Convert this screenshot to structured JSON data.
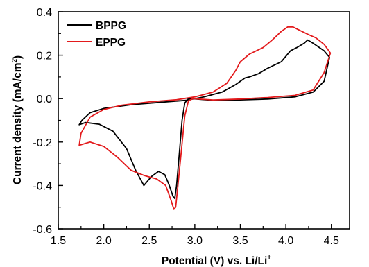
{
  "chart_data": {
    "type": "line",
    "title": "",
    "xlabel": "Potential (V) vs. Li/Li",
    "xlabel_superscript": "+",
    "ylabel_main": "Current density (mA/cm",
    "ylabel_superscript": "2",
    "ylabel_close": ")",
    "xlim": [
      1.5,
      4.7
    ],
    "ylim": [
      -0.6,
      0.4
    ],
    "xticks": [
      1.5,
      2.0,
      2.5,
      3.0,
      3.5,
      4.0,
      4.5
    ],
    "xtick_labels": [
      "1.5",
      "2.0",
      "2.5",
      "3.0",
      "3.5",
      "4.0",
      "4.5"
    ],
    "yticks": [
      -0.6,
      -0.4,
      -0.2,
      0.0,
      0.2,
      0.4
    ],
    "ytick_labels": [
      "-0.6",
      "-0.4",
      "-0.2",
      "0.0",
      "0.2",
      "0.4"
    ],
    "grid": false,
    "legend_position": "top-left",
    "series": [
      {
        "name": "BPPG",
        "color": "#000000",
        "points": [
          [
            2.96,
            0.0
          ],
          [
            3.2,
            -0.008
          ],
          [
            3.5,
            -0.006
          ],
          [
            3.8,
            -0.002
          ],
          [
            4.1,
            0.008
          ],
          [
            4.3,
            0.03
          ],
          [
            4.42,
            0.08
          ],
          [
            4.48,
            0.19
          ],
          [
            4.42,
            0.22
          ],
          [
            4.3,
            0.255
          ],
          [
            4.24,
            0.27
          ],
          [
            4.2,
            0.255
          ],
          [
            4.12,
            0.235
          ],
          [
            4.05,
            0.22
          ],
          [
            3.95,
            0.17
          ],
          [
            3.8,
            0.14
          ],
          [
            3.7,
            0.115
          ],
          [
            3.6,
            0.1
          ],
          [
            3.55,
            0.095
          ],
          [
            3.45,
            0.065
          ],
          [
            3.3,
            0.03
          ],
          [
            3.1,
            0.008
          ],
          [
            2.9,
            -0.008
          ],
          [
            2.6,
            -0.018
          ],
          [
            2.3,
            -0.028
          ],
          [
            2.0,
            -0.045
          ],
          [
            1.85,
            -0.065
          ],
          [
            1.76,
            -0.1
          ],
          [
            1.73,
            -0.12
          ],
          [
            1.8,
            -0.11
          ],
          [
            1.95,
            -0.118
          ],
          [
            2.1,
            -0.15
          ],
          [
            2.25,
            -0.23
          ],
          [
            2.35,
            -0.33
          ],
          [
            2.44,
            -0.4
          ],
          [
            2.52,
            -0.36
          ],
          [
            2.6,
            -0.335
          ],
          [
            2.67,
            -0.35
          ],
          [
            2.72,
            -0.4
          ],
          [
            2.76,
            -0.45
          ],
          [
            2.78,
            -0.46
          ],
          [
            2.8,
            -0.4
          ],
          [
            2.83,
            -0.25
          ],
          [
            2.86,
            -0.1
          ],
          [
            2.89,
            -0.02
          ],
          [
            2.93,
            0.0
          ],
          [
            2.96,
            0.0
          ]
        ]
      },
      {
        "name": "EPPG",
        "color": "#e31a1c",
        "points": [
          [
            2.98,
            0.0
          ],
          [
            3.2,
            -0.006
          ],
          [
            3.5,
            -0.002
          ],
          [
            3.8,
            0.005
          ],
          [
            4.1,
            0.015
          ],
          [
            4.3,
            0.04
          ],
          [
            4.42,
            0.12
          ],
          [
            4.49,
            0.21
          ],
          [
            4.42,
            0.25
          ],
          [
            4.33,
            0.28
          ],
          [
            4.25,
            0.295
          ],
          [
            4.15,
            0.315
          ],
          [
            4.08,
            0.33
          ],
          [
            4.02,
            0.33
          ],
          [
            3.95,
            0.31
          ],
          [
            3.85,
            0.27
          ],
          [
            3.75,
            0.235
          ],
          [
            3.6,
            0.205
          ],
          [
            3.5,
            0.17
          ],
          [
            3.45,
            0.13
          ],
          [
            3.35,
            0.07
          ],
          [
            3.2,
            0.03
          ],
          [
            3.0,
            0.008
          ],
          [
            2.8,
            -0.005
          ],
          [
            2.5,
            -0.015
          ],
          [
            2.2,
            -0.03
          ],
          [
            2.0,
            -0.05
          ],
          [
            1.85,
            -0.085
          ],
          [
            1.75,
            -0.16
          ],
          [
            1.73,
            -0.215
          ],
          [
            1.85,
            -0.2
          ],
          [
            2.0,
            -0.22
          ],
          [
            2.15,
            -0.27
          ],
          [
            2.3,
            -0.33
          ],
          [
            2.45,
            -0.355
          ],
          [
            2.58,
            -0.37
          ],
          [
            2.68,
            -0.4
          ],
          [
            2.74,
            -0.47
          ],
          [
            2.77,
            -0.51
          ],
          [
            2.79,
            -0.5
          ],
          [
            2.81,
            -0.42
          ],
          [
            2.85,
            -0.25
          ],
          [
            2.89,
            -0.08
          ],
          [
            2.93,
            -0.01
          ],
          [
            2.98,
            0.0
          ]
        ]
      }
    ]
  }
}
